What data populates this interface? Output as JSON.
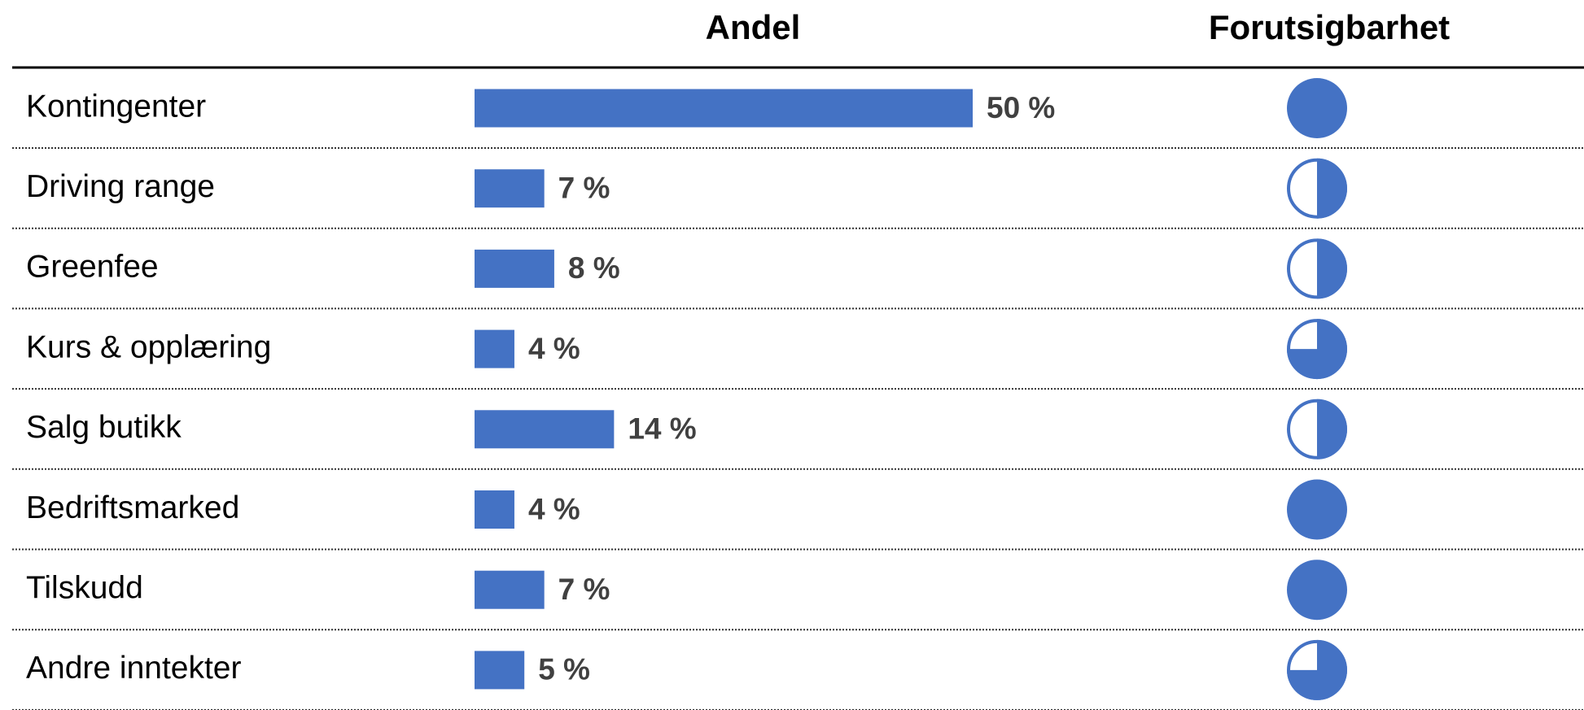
{
  "chart_data": {
    "type": "bar",
    "orientation": "horizontal",
    "column_headers": [
      "Andel",
      "Forutsigbarhet"
    ],
    "categories": [
      "Kontingenter",
      "Driving range",
      "Greenfee",
      "Kurs & opplæring",
      "Salg butikk",
      "Bedriftsmarked",
      "Tilskudd",
      "Andre inntekter"
    ],
    "values": [
      50,
      7,
      8,
      4,
      14,
      4,
      7,
      5
    ],
    "value_labels": [
      "50 %",
      "7 %",
      "8 %",
      "4 %",
      "14 %",
      "4 %",
      "7 %",
      "5 %"
    ],
    "color": "#4472c4",
    "predictability": [
      1,
      0.5,
      0.5,
      0.75,
      0.5,
      1,
      1,
      0.75
    ]
  }
}
